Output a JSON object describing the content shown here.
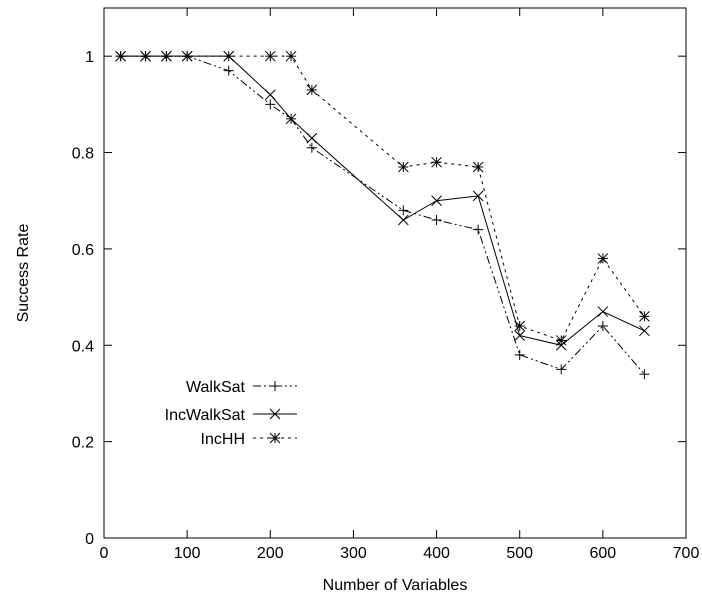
{
  "chart_data": {
    "type": "line",
    "title": "",
    "xlabel": "Number of Variables",
    "ylabel": "Success Rate",
    "xlim": [
      0,
      700
    ],
    "ylim": [
      0,
      1.1
    ],
    "xticks": [
      0,
      100,
      200,
      300,
      400,
      500,
      600,
      700
    ],
    "yticks": [
      0,
      0.2,
      0.4,
      0.6,
      0.8,
      1
    ],
    "grid": false,
    "legend_position": "lower-left",
    "series": [
      {
        "name": "WalkSat",
        "marker": "plus",
        "dash": "dash-dot-dot",
        "x": [
          20,
          50,
          75,
          100,
          150,
          200,
          225,
          250,
          360,
          400,
          450,
          500,
          550,
          600,
          650
        ],
        "y": [
          1,
          1,
          1,
          1,
          0.97,
          0.9,
          0.87,
          0.81,
          0.68,
          0.66,
          0.64,
          0.38,
          0.35,
          0.44,
          0.34
        ]
      },
      {
        "name": "IncWalkSat",
        "marker": "cross",
        "dash": "solid",
        "x": [
          20,
          50,
          75,
          100,
          150,
          200,
          225,
          250,
          360,
          400,
          450,
          500,
          550,
          600,
          650
        ],
        "y": [
          1,
          1,
          1,
          1,
          1,
          0.92,
          0.87,
          0.83,
          0.66,
          0.7,
          0.71,
          0.42,
          0.4,
          0.47,
          0.43
        ]
      },
      {
        "name": "IncHH",
        "marker": "star",
        "dash": "dotted",
        "x": [
          20,
          50,
          75,
          100,
          150,
          200,
          225,
          250,
          360,
          400,
          450,
          500,
          550,
          600,
          650
        ],
        "y": [
          1,
          1,
          1,
          1,
          1,
          1,
          1,
          0.93,
          0.77,
          0.78,
          0.77,
          0.44,
          0.41,
          0.58,
          0.46
        ]
      }
    ]
  }
}
